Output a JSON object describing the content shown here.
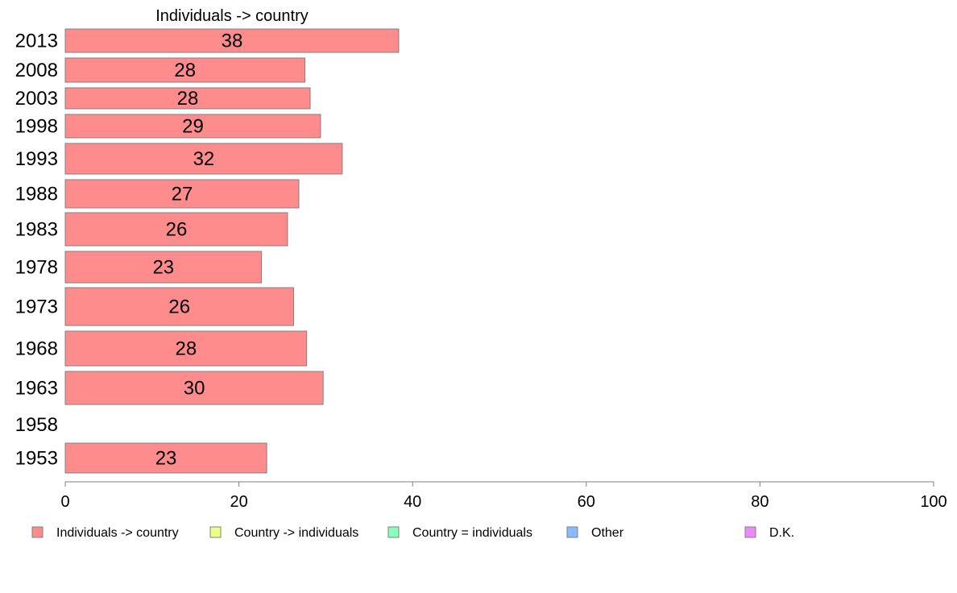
{
  "chart_data": {
    "type": "bar",
    "orientation": "horizontal",
    "title": "Individuals -> country",
    "categories": [
      "2013",
      "2008",
      "2003",
      "1998",
      "1993",
      "1988",
      "1983",
      "1978",
      "1973",
      "1968",
      "1963",
      "1958",
      "1953"
    ],
    "series": [
      {
        "name": "Individuals -> country",
        "color": "#ff8c8c",
        "values": [
          38,
          28,
          28,
          29,
          32,
          27,
          26,
          23,
          26,
          28,
          30,
          null,
          23
        ],
        "exact_values": [
          38.4,
          27.6,
          28.2,
          29.4,
          31.9,
          26.9,
          25.6,
          22.6,
          26.3,
          27.8,
          29.7,
          null,
          23.2
        ]
      }
    ],
    "xlim": [
      0,
      100
    ],
    "xticks": [
      0,
      20,
      40,
      60,
      80,
      100
    ],
    "grid": false,
    "legend": {
      "placement": "bottom",
      "entries": [
        {
          "label": "Individuals -> country",
          "color": "#ff8c8c"
        },
        {
          "label": "Country -> individuals",
          "color": "#eeff88"
        },
        {
          "label": "Country = individuals",
          "color": "#88ffbb"
        },
        {
          "label": "Other",
          "color": "#88bbff"
        },
        {
          "label": "D.K.",
          "color": "#ee88ff"
        }
      ]
    }
  }
}
